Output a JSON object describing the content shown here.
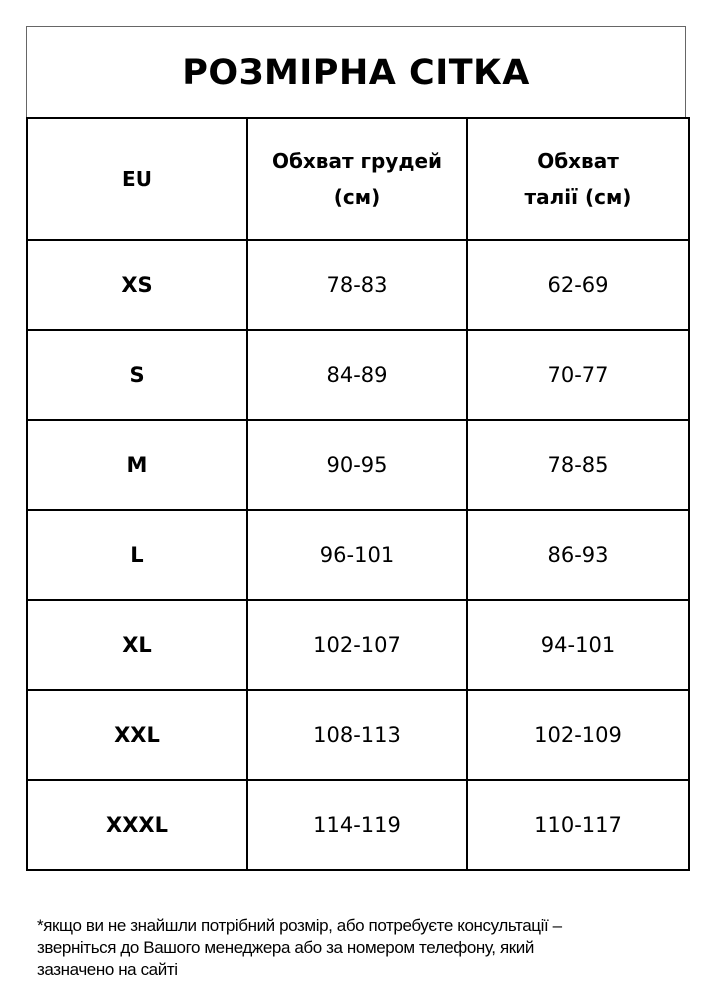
{
  "title": "РОЗМІРНА СІТКА",
  "headers": [
    "EU",
    "Обхват грудей (см)",
    "Обхват талії (см)"
  ],
  "rows": [
    {
      "size": "XS",
      "chest": "78-83",
      "waist": "62-69"
    },
    {
      "size": "S",
      "chest": "84-89",
      "waist": "70-77"
    },
    {
      "size": "M",
      "chest": "90-95",
      "waist": "78-85"
    },
    {
      "size": "L",
      "chest": "96-101",
      "waist": "86-93"
    },
    {
      "size": "XL",
      "chest": "102-107",
      "waist": "94-101"
    },
    {
      "size": "XXL",
      "chest": "108-113",
      "waist": "102-109"
    },
    {
      "size": "XXXL",
      "chest": "114-119",
      "waist": "110-117"
    }
  ],
  "note_lines": [
    "*якщо ви не знайшли потрібний розмір, або потребуєте консультації –",
    "зверніться до Вашого менеджера або за номером телефону, який",
    "зазначено на сайті"
  ]
}
